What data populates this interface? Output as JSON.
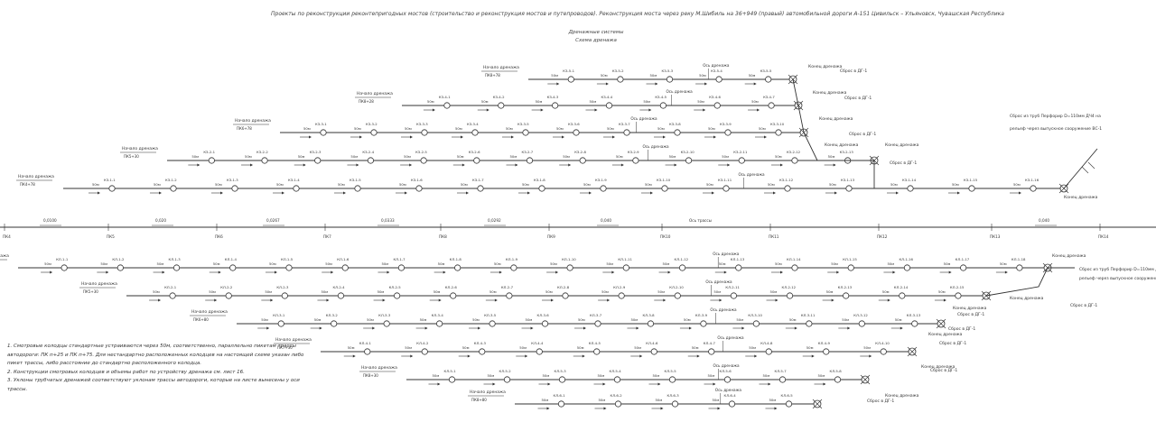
{
  "title": "Проекты по реконструкции реконтепригодных мостов (строительство и реконструкция мостов и путепроводов). Реконструкция моста через реку М.Шибиль на 36+949 (правый) автомобильной дороги А-151 Цивильск – Ульяновск, Чувашская Республика",
  "subtitle_1": "Дренажные системы",
  "subtitle_2": "Схема дренажа",
  "labels": {
    "start": "Начало дренажа",
    "end": "Конец дренажа",
    "axis": "Ось дренажа",
    "axis_route": "Ось трассы",
    "spacing": "50м",
    "spacing_short": "40м",
    "outlet": "Сброс в ДГ-1",
    "outlet_long_top": "Сброс из труб Перфорир D=110мм ДЧ4 на",
    "outlet_long_top_2": "рельеф через выпускное сооружение ВС-1",
    "outlet_long_bottom": "Сброс из труб Перфорир D=110мм ДЧ4 на",
    "outlet_long_bottom_2": "рельеф через выпускное сооружение ВС-2"
  },
  "axis_ticks": [
    "ПК4",
    "ПК5",
    "ПК6",
    "ПК7",
    "ПК8",
    "ПК9",
    "ПК10",
    "ПК11",
    "ПК12",
    "ПК13",
    "ПК14"
  ],
  "axis_slopes": [
    "0,0100",
    "0,020",
    "0,0267",
    "0,0333",
    "0,0292",
    "0,040",
    "0,040"
  ],
  "top_group": [
    {
      "well_prefix": "КЗ-5",
      "count": 5,
      "pk_start": "ПК8+78"
    },
    {
      "well_prefix": "КЗ-4",
      "count": 7,
      "pk_start": "ПК8+28"
    },
    {
      "well_prefix": "КЗ-3",
      "count": 10,
      "pk_start": "ПК6+78"
    },
    {
      "well_prefix": "КЗ-2",
      "count": 13,
      "pk_start": "ПК5+30"
    },
    {
      "well_prefix": "КЗ-1",
      "count": 16,
      "pk_start": "ПК4+78"
    }
  ],
  "bottom_group": [
    {
      "well_prefix": "КЛ-1",
      "count": 18,
      "pk_start": "ПК4+86"
    },
    {
      "well_prefix": "КЛ-2",
      "count": 15,
      "pk_start": "ПК5+30"
    },
    {
      "well_prefix": "КЛ-3",
      "count": 13,
      "pk_start": "ПК6+80"
    },
    {
      "well_prefix": "КЛ-4",
      "count": 10,
      "pk_start": "ПК7+30"
    },
    {
      "well_prefix": "КЛ-5",
      "count": 8,
      "pk_start": "ПК8+30"
    },
    {
      "well_prefix": "КЛ-6",
      "count": 5,
      "pk_start": "ПК8+80"
    }
  ],
  "notes": [
    "1. Смотровые колодцы стандартные устраиваются через 50м, соответственно, параллельно пикетам трассы автодороги: ПК п+25 и ПК п+75. Для нестандартно расположенных колодцев на настоящей схеме указан либо пикет трассы, либо расстояние до стандартно расположенного колодца.",
    "2. Конструкции смотровых колодцев и объемы работ по устройству дренажа см. лист 16.",
    "3. Уклоны трубчатых дренажей соответствуют уклонам трассы автодороги, которые на листе вынесены у оси трассы."
  ]
}
